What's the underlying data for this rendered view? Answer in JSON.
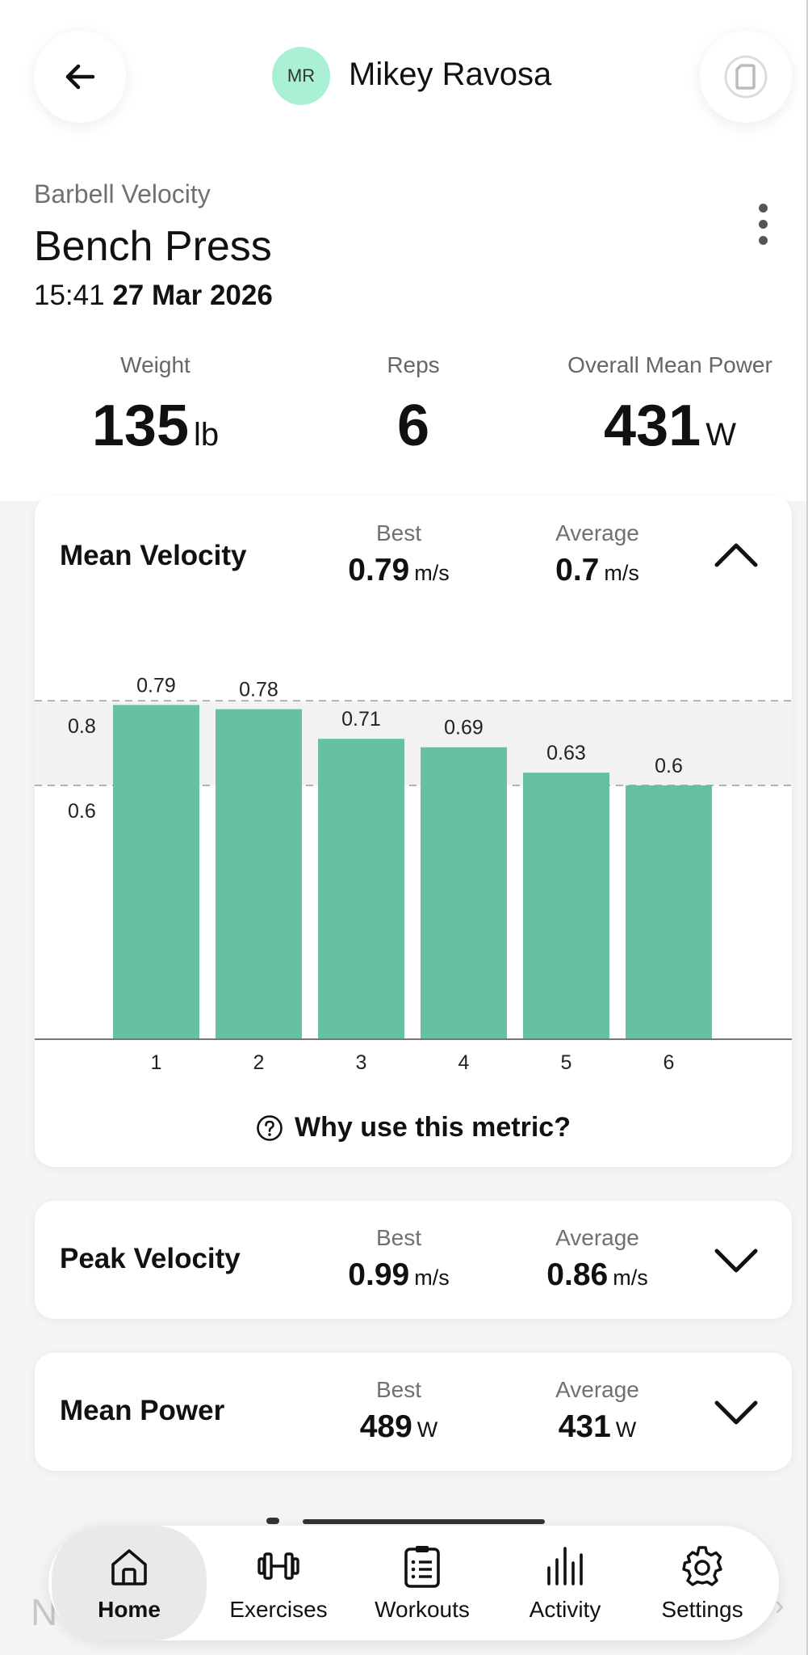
{
  "header": {
    "avatar_initials": "MR",
    "user_name": "Mikey Ravosa",
    "avatar_color": "#a9f0d4"
  },
  "exercise": {
    "category": "Barbell Velocity",
    "name": "Bench Press",
    "time": "15:41",
    "date": "27 Mar 2026"
  },
  "summary": {
    "weight": {
      "label": "Weight",
      "value": "135",
      "unit": "lb"
    },
    "reps": {
      "label": "Reps",
      "value": "6"
    },
    "power": {
      "label": "Overall Mean Power",
      "value": "431",
      "unit": "W"
    }
  },
  "metrics": [
    {
      "name": "Mean Velocity",
      "best_label": "Best",
      "best_value": "0.79",
      "best_unit": "m/s",
      "avg_label": "Average",
      "avg_value": "0.7",
      "avg_unit": "m/s",
      "expanded": true
    },
    {
      "name": "Peak Velocity",
      "best_label": "Best",
      "best_value": "0.99",
      "best_unit": "m/s",
      "avg_label": "Average",
      "avg_value": "0.86",
      "avg_unit": "m/s",
      "expanded": false
    },
    {
      "name": "Mean Power",
      "best_label": "Best",
      "best_value": "489",
      "best_unit": "W",
      "avg_label": "Average",
      "avg_value": "431",
      "avg_unit": "W",
      "expanded": false
    }
  ],
  "why_label": "Why use this metric?",
  "chart_data": {
    "type": "bar",
    "categories": [
      "1",
      "2",
      "3",
      "4",
      "5",
      "6"
    ],
    "values": [
      0.79,
      0.78,
      0.71,
      0.69,
      0.63,
      0.6
    ],
    "data_labels": [
      "0.79",
      "0.78",
      "0.71",
      "0.69",
      "0.63",
      "0.6"
    ],
    "y_ticks": [
      {
        "value": 0.8,
        "label": "0.8"
      },
      {
        "value": 0.6,
        "label": "0.6"
      }
    ],
    "target_band": [
      0.6,
      0.8
    ],
    "ylim": [
      0,
      0.85
    ],
    "bar_color": "#66c1a4",
    "band_color": "#f2f2f2",
    "grid": false
  },
  "nav": {
    "items": [
      {
        "label": "Home",
        "icon": "home-icon",
        "active": true
      },
      {
        "label": "Exercises",
        "icon": "dumbbell-icon",
        "active": false
      },
      {
        "label": "Workouts",
        "icon": "clipboard-icon",
        "active": false
      },
      {
        "label": "Activity",
        "icon": "bar-chart-icon",
        "active": false
      },
      {
        "label": "Settings",
        "icon": "gear-icon",
        "active": false
      }
    ]
  }
}
